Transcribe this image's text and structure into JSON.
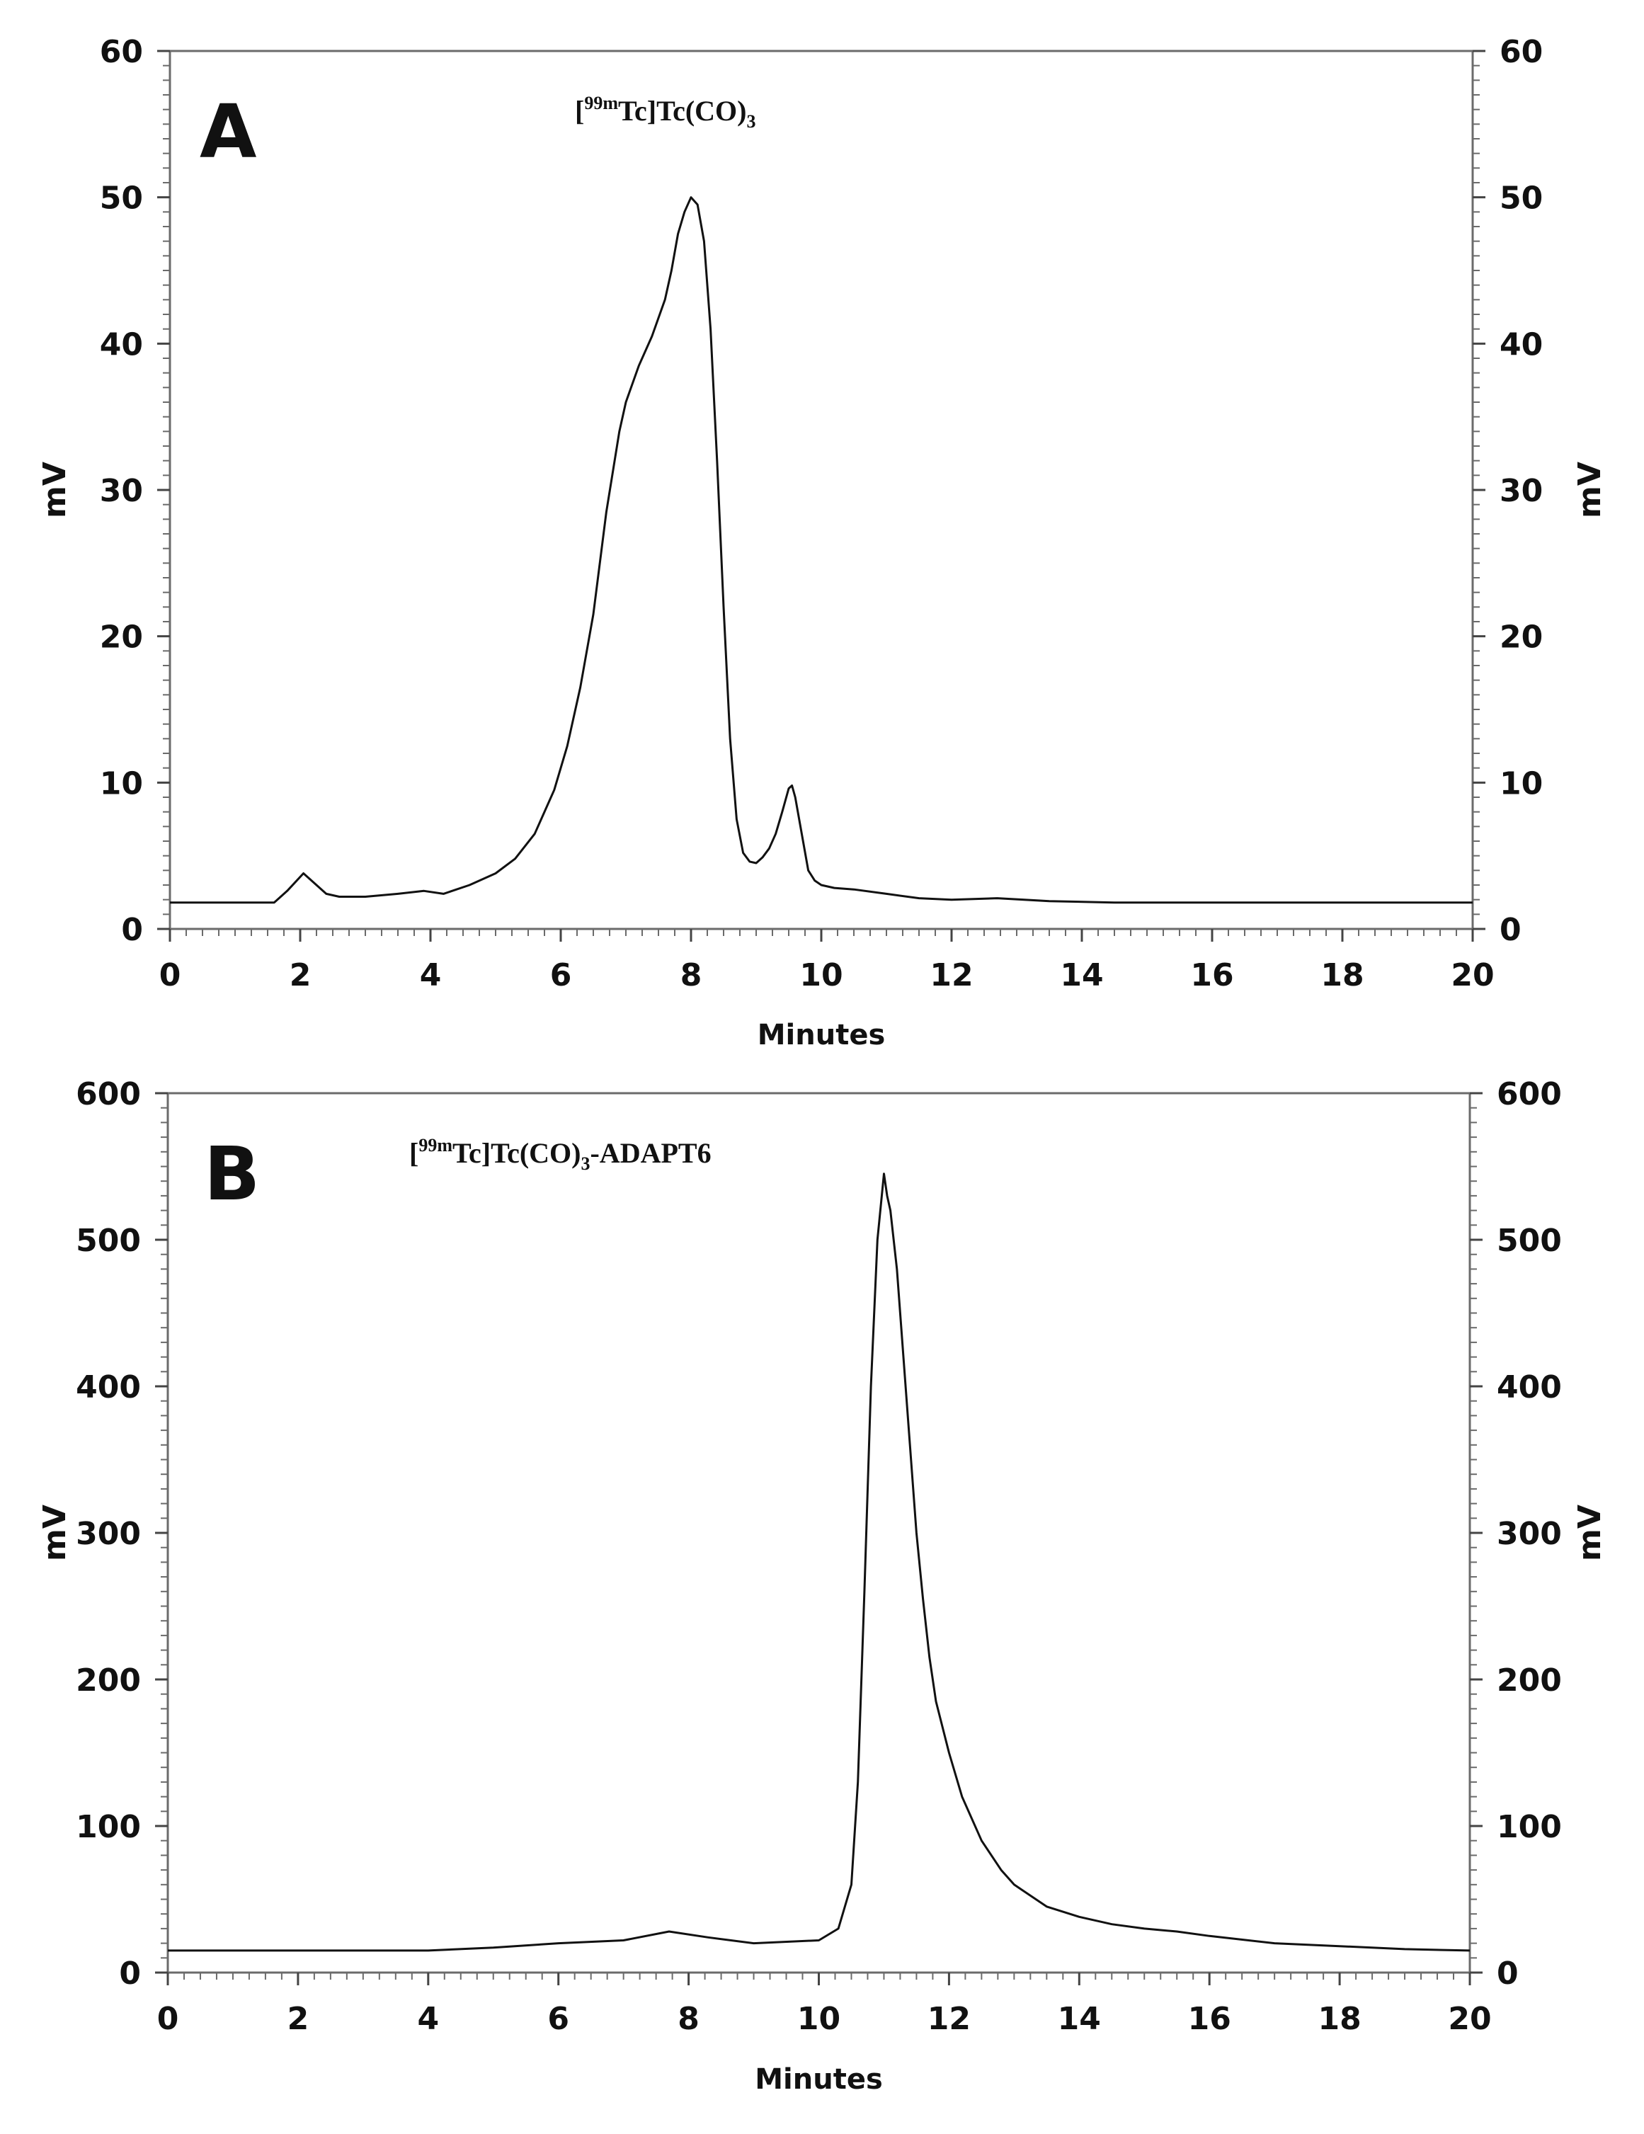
{
  "chart_data": [
    {
      "type": "line",
      "panel_label": "A",
      "annotation": {
        "open": "[",
        "sup": "99m",
        "mid": "Tc]Tc(CO)",
        "sub": "3",
        "tail": ""
      },
      "xlabel": "Minutes",
      "ylabel": "mV",
      "ylabel_right": "mV",
      "xlim": [
        0,
        20
      ],
      "ylim": [
        0,
        60
      ],
      "xticks": [
        "0",
        "2",
        "4",
        "6",
        "8",
        "10",
        "12",
        "14",
        "16",
        "18",
        "20"
      ],
      "yticks": [
        "0",
        "10",
        "20",
        "30",
        "40",
        "50",
        "60"
      ],
      "grid": false,
      "series": [
        {
          "color": "#111111",
          "x": [
            0,
            1.6,
            1.8,
            2.05,
            2.2,
            2.4,
            2.6,
            3.0,
            3.5,
            3.9,
            4.2,
            4.6,
            5.0,
            5.3,
            5.6,
            5.9,
            6.1,
            6.3,
            6.5,
            6.7,
            6.9,
            7.0,
            7.2,
            7.4,
            7.6,
            7.7,
            7.8,
            7.9,
            8.0,
            8.1,
            8.2,
            8.3,
            8.4,
            8.5,
            8.6,
            8.7,
            8.8,
            8.9,
            9.0,
            9.1,
            9.2,
            9.3,
            9.4,
            9.5,
            9.55,
            9.6,
            9.7,
            9.8,
            9.9,
            10.0,
            10.2,
            10.5,
            11.0,
            11.5,
            12.0,
            12.7,
            13.5,
            14.5,
            16,
            18,
            20
          ],
          "y": [
            1.8,
            1.8,
            2.6,
            3.8,
            3.2,
            2.4,
            2.2,
            2.2,
            2.4,
            2.6,
            2.4,
            3.0,
            3.8,
            4.8,
            6.5,
            9.5,
            12.5,
            16.5,
            21.5,
            28.5,
            34.0,
            36.0,
            38.5,
            40.5,
            43.0,
            45.0,
            47.5,
            49.0,
            50.0,
            49.5,
            47.0,
            41.0,
            32.0,
            22.0,
            13.0,
            7.5,
            5.2,
            4.6,
            4.5,
            4.9,
            5.5,
            6.5,
            8.0,
            9.6,
            9.8,
            9.0,
            6.5,
            4.0,
            3.3,
            3.0,
            2.8,
            2.7,
            2.4,
            2.1,
            2.0,
            2.1,
            1.9,
            1.8,
            1.8,
            1.8,
            1.8
          ]
        }
      ]
    },
    {
      "type": "line",
      "panel_label": "B",
      "annotation": {
        "open": "[",
        "sup": "99m",
        "mid": "Tc]Tc(CO)",
        "sub": "3",
        "tail": "-ADAPT6"
      },
      "xlabel": "Minutes",
      "ylabel": "mV",
      "ylabel_right": "mV",
      "xlim": [
        0,
        20
      ],
      "ylim": [
        0,
        600
      ],
      "xticks": [
        "0",
        "2",
        "4",
        "6",
        "8",
        "10",
        "12",
        "14",
        "16",
        "18",
        "20"
      ],
      "yticks": [
        "0",
        "100",
        "200",
        "300",
        "400",
        "500",
        "600"
      ],
      "grid": false,
      "series": [
        {
          "color": "#111111",
          "x": [
            0,
            2,
            4,
            5,
            6,
            7,
            7.7,
            8.3,
            9,
            10,
            10.3,
            10.5,
            10.6,
            10.7,
            10.8,
            10.9,
            11.0,
            11.05,
            11.1,
            11.2,
            11.3,
            11.4,
            11.5,
            11.6,
            11.7,
            11.8,
            12.0,
            12.2,
            12.5,
            12.8,
            13.0,
            13.5,
            14.0,
            14.5,
            15.0,
            15.5,
            16.0,
            17.0,
            18.0,
            19.0,
            20.0
          ],
          "y": [
            15,
            15,
            15,
            17,
            20,
            22,
            28,
            24,
            20,
            22,
            30,
            60,
            130,
            260,
            400,
            500,
            545,
            530,
            520,
            480,
            420,
            360,
            300,
            255,
            215,
            185,
            150,
            120,
            90,
            70,
            60,
            45,
            38,
            33,
            30,
            28,
            25,
            20,
            18,
            16,
            15
          ]
        }
      ]
    }
  ]
}
